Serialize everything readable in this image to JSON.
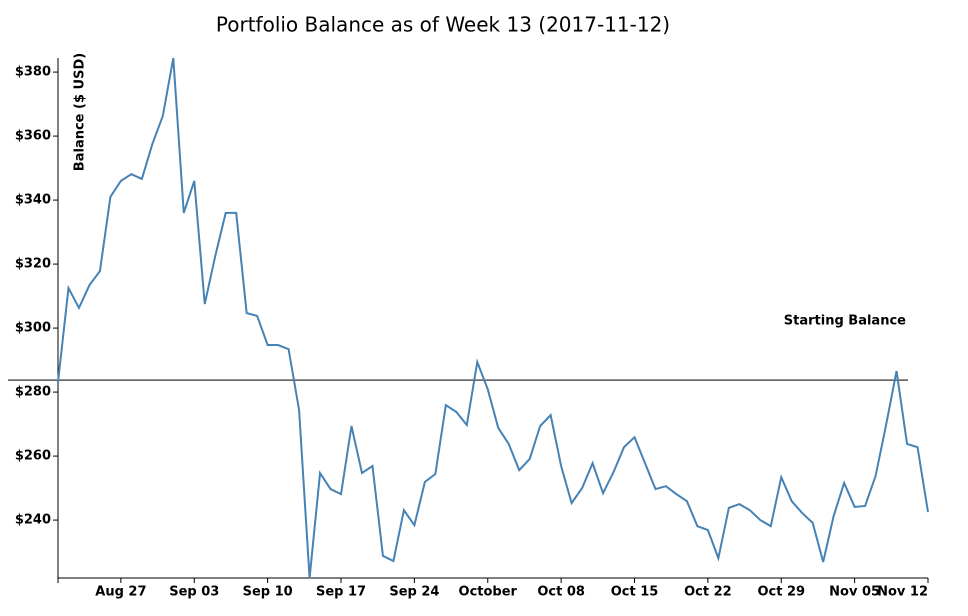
{
  "chart_data": {
    "type": "line",
    "title": "Portfolio Balance as of Week 13 (2017-11-12)",
    "y_label": "Balance ($ USD)",
    "x": [
      "2017-08-21",
      "2017-08-22",
      "2017-08-23",
      "2017-08-24",
      "2017-08-25",
      "2017-08-26",
      "2017-08-27",
      "2017-08-28",
      "2017-08-29",
      "2017-08-30",
      "2017-08-31",
      "2017-09-01",
      "2017-09-02",
      "2017-09-03",
      "2017-09-04",
      "2017-09-05",
      "2017-09-06",
      "2017-09-07",
      "2017-09-08",
      "2017-09-09",
      "2017-09-10",
      "2017-09-11",
      "2017-09-12",
      "2017-09-13",
      "2017-09-14",
      "2017-09-15",
      "2017-09-16",
      "2017-09-17",
      "2017-09-18",
      "2017-09-19",
      "2017-09-20",
      "2017-09-21",
      "2017-09-22",
      "2017-09-23",
      "2017-09-24",
      "2017-09-25",
      "2017-09-26",
      "2017-09-27",
      "2017-09-28",
      "2017-09-29",
      "2017-09-30",
      "2017-10-01",
      "2017-10-02",
      "2017-10-03",
      "2017-10-04",
      "2017-10-05",
      "2017-10-06",
      "2017-10-07",
      "2017-10-08",
      "2017-10-09",
      "2017-10-10",
      "2017-10-11",
      "2017-10-12",
      "2017-10-13",
      "2017-10-14",
      "2017-10-15",
      "2017-10-16",
      "2017-10-17",
      "2017-10-18",
      "2017-10-19",
      "2017-10-20",
      "2017-10-21",
      "2017-10-22",
      "2017-10-23",
      "2017-10-24",
      "2017-10-25",
      "2017-10-26",
      "2017-10-27",
      "2017-10-28",
      "2017-10-29",
      "2017-10-30",
      "2017-10-31",
      "2017-11-01",
      "2017-11-02",
      "2017-11-03",
      "2017-11-04",
      "2017-11-05",
      "2017-11-06",
      "2017-11-07",
      "2017-11-08",
      "2017-11-09",
      "2017-11-10",
      "2017-11-11",
      "2017-11-12"
    ],
    "series": [
      {
        "color": "#4682b4",
        "values": [
          283.1,
          312.5,
          306.3,
          313.4,
          317.8,
          341,
          346,
          348.1,
          346.6,
          357.5,
          366.3,
          384.4,
          336,
          346,
          307.5,
          322.5,
          336,
          336,
          304.7,
          303.8,
          294.7,
          294.7,
          293.4,
          274.4,
          221.9,
          254.7,
          249.7,
          248.1,
          269.4,
          254.7,
          256.9,
          228.8,
          227.2,
          243.1,
          238.4,
          251.9,
          254.4,
          275.9,
          273.8,
          269.7,
          289.4,
          280.9,
          268.8,
          263.8,
          255.6,
          259.1,
          269.4,
          272.8,
          256.9,
          245.3,
          250,
          257.8,
          248.4,
          255,
          262.8,
          265.9,
          257.8,
          249.7,
          250.6,
          248.1,
          245.9,
          238.1,
          236.9,
          228.1,
          243.8,
          245,
          243.1,
          240,
          238.1,
          253.4,
          245.9,
          242.2,
          239.1,
          226.9,
          241.3,
          251.6,
          244.1,
          244.4,
          253.8,
          269.7,
          286.6,
          263.8,
          262.8,
          242.5
        ]
      }
    ],
    "xlim": [
      "2017-08-21",
      "2017-11-12"
    ],
    "xticks": [
      {
        "value": "2017-08-27",
        "label": "Aug 27"
      },
      {
        "value": "2017-09-03",
        "label": "Sep 03"
      },
      {
        "value": "2017-09-10",
        "label": "Sep 10"
      },
      {
        "value": "2017-09-17",
        "label": "Sep 17"
      },
      {
        "value": "2017-09-24",
        "label": "Sep 24"
      },
      {
        "value": "2017-10-01",
        "label": "October"
      },
      {
        "value": "2017-10-08",
        "label": "Oct 08"
      },
      {
        "value": "2017-10-15",
        "label": "Oct 15"
      },
      {
        "value": "2017-10-22",
        "label": "Oct 22"
      },
      {
        "value": "2017-10-29",
        "label": "Oct 29"
      },
      {
        "value": "2017-11-05",
        "label": "Nov 05"
      },
      {
        "value": "2017-11-12",
        "label": "Nov 12"
      }
    ],
    "ylim": [
      221.9,
      384.4
    ],
    "yticks": [
      {
        "value": 240,
        "label": "$240"
      },
      {
        "value": 260,
        "label": "$260"
      },
      {
        "value": 280,
        "label": "$280"
      },
      {
        "value": 300,
        "label": "$300"
      },
      {
        "value": 320,
        "label": "$320"
      },
      {
        "value": 340,
        "label": "$340"
      },
      {
        "value": 360,
        "label": "$360"
      },
      {
        "value": 380,
        "label": "$380"
      }
    ],
    "reference_line": {
      "value": 283.75,
      "label": "Starting Balance",
      "color": "#555555"
    }
  }
}
